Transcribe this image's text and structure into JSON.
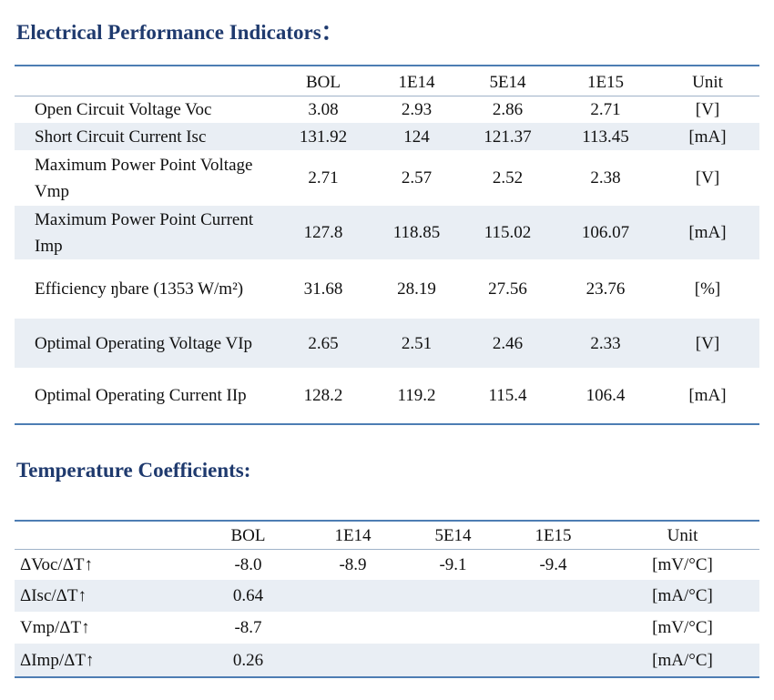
{
  "sections": [
    {
      "title": "Electrical Performance Indicators：",
      "table": {
        "columns": [
          "BOL",
          "1E14",
          "5E14",
          "1E15",
          "Unit"
        ],
        "rows": [
          {
            "label": "Open Circuit Voltage Voc",
            "cells": [
              "3.08",
              "2.93",
              "2.86",
              "2.71",
              "[V]"
            ]
          },
          {
            "label": "Short Circuit Current Isc",
            "cells": [
              "131.92",
              "124",
              "121.37",
              "113.45",
              "[mA]"
            ]
          },
          {
            "label": "Maximum Power Point Voltage Vmp",
            "cells": [
              "2.71",
              "2.57",
              "2.52",
              "2.38",
              "[V]"
            ]
          },
          {
            "label": "Maximum Power Point Current Imp",
            "cells": [
              "127.8",
              "118.85",
              "115.02",
              "106.07",
              "[mA]"
            ]
          },
          {
            "label": "Efficiency ŋbare (1353 W/m²)",
            "cells": [
              "31.68",
              "28.19",
              "27.56",
              "23.76",
              "[%]"
            ]
          },
          {
            "label": "Optimal Operating Voltage VIp",
            "cells": [
              "2.65",
              "2.51",
              "2.46",
              "2.33",
              "[V]"
            ]
          },
          {
            "label": "Optimal Operating Current IIp",
            "cells": [
              "128.2",
              "119.2",
              "115.4",
              "106.4",
              "[mA]"
            ]
          }
        ]
      }
    },
    {
      "title": "Temperature Coefficients:",
      "table": {
        "columns": [
          "BOL",
          "1E14",
          "5E14",
          "1E15",
          "Unit"
        ],
        "rows": [
          {
            "label": "ΔVoc/ΔT↑",
            "cells": [
              "-8.0",
              "-8.9",
              "-9.1",
              "-9.4",
              "[mV/°C]"
            ]
          },
          {
            "label": "ΔIsc/ΔT↑",
            "cells": [
              "0.64",
              null,
              null,
              null,
              "[mA/°C]"
            ]
          },
          {
            "label": "Vmp/ΔT↑",
            "cells": [
              "-8.7",
              null,
              null,
              null,
              "[mV/°C]"
            ]
          },
          {
            "label": "ΔImp/ΔT↑",
            "cells": [
              "0.26",
              null,
              null,
              null,
              "[mA/°C]"
            ]
          }
        ]
      }
    }
  ]
}
